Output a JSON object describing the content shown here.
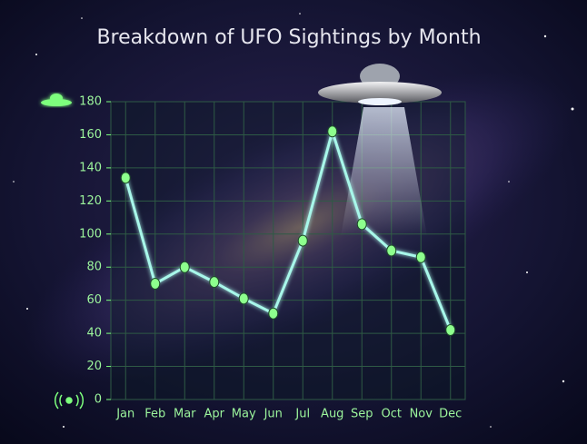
{
  "chart_data": {
    "type": "line",
    "title": "Breakdown of UFO Sightings by Month",
    "categories": [
      "Jan",
      "Feb",
      "Mar",
      "Apr",
      "May",
      "Jun",
      "Jul",
      "Aug",
      "Sep",
      "Oct",
      "Nov",
      "Dec"
    ],
    "values": [
      134,
      70,
      80,
      71,
      61,
      52,
      96,
      162,
      106,
      90,
      86,
      42
    ],
    "color": "#a8f7ea",
    "ylim": [
      0,
      180
    ],
    "yticks": [
      0,
      20,
      40,
      60,
      80,
      100,
      120,
      140,
      160,
      180
    ],
    "grid": true
  }
}
